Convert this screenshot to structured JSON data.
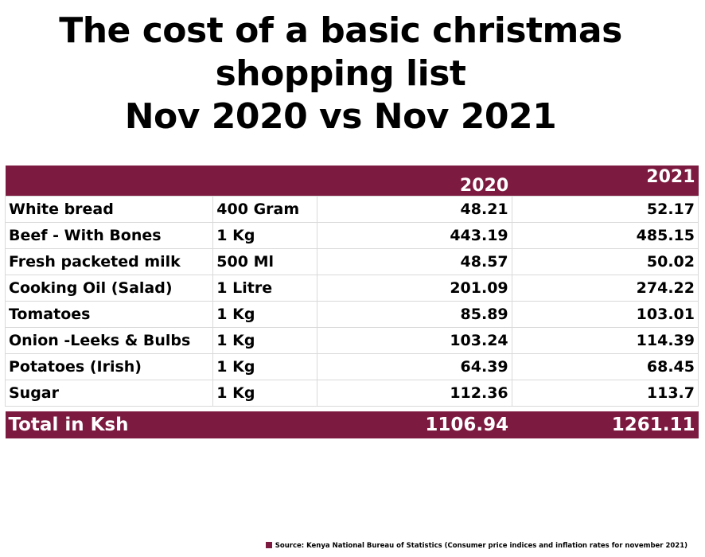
{
  "title_lines": [
    "The cost of a basic christmas",
    "shopping list",
    "Nov 2020 vs Nov 2021"
  ],
  "colors": {
    "accent": "#7c1a3f",
    "header_text": "#ffffff"
  },
  "chart_data": {
    "type": "table",
    "title": "The cost of a basic christmas shopping list Nov 2020 vs Nov 2021",
    "columns": [
      "",
      "",
      "2020",
      "2021"
    ],
    "rows": [
      {
        "item": "White bread",
        "unit": "400 Gram",
        "v2020": "48.21",
        "v2021": "52.17"
      },
      {
        "item": "Beef - With Bones",
        "unit": "1 Kg",
        "v2020": "443.19",
        "v2021": "485.15"
      },
      {
        "item": "Fresh packeted milk",
        "unit": "500 Ml",
        "v2020": "48.57",
        "v2021": "50.02"
      },
      {
        "item": "Cooking Oil (Salad)",
        "unit": "1 Litre",
        "v2020": "201.09",
        "v2021": "274.22"
      },
      {
        "item": "Tomatoes",
        "unit": "1 Kg",
        "v2020": "85.89",
        "v2021": "103.01"
      },
      {
        "item": "Onion -Leeks & Bulbs",
        "unit": "1 Kg",
        "v2020": "103.24",
        "v2021": "114.39"
      },
      {
        "item": "Potatoes (Irish)",
        "unit": "1 Kg",
        "v2020": "64.39",
        "v2021": "68.45"
      },
      {
        "item": "Sugar",
        "unit": "1 Kg",
        "v2020": "112.36",
        "v2021": "113.7"
      }
    ],
    "total": {
      "label": "Total in Ksh",
      "v2020": "1106.94",
      "v2021": "1261.11"
    }
  },
  "source": "Source: Kenya National Bureau of Statistics (Consumer price indices and inflation rates for november 2021)"
}
